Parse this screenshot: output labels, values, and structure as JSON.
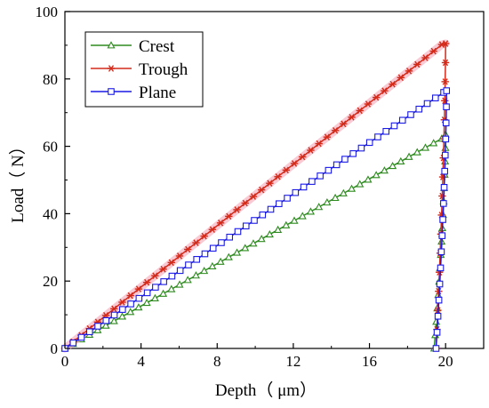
{
  "chart_data": {
    "type": "line",
    "xlabel": "Depth（ μm）",
    "ylabel": "Load（ N）",
    "xlim": [
      0,
      22
    ],
    "ylim": [
      0,
      100
    ],
    "xticks": [
      0,
      4,
      8,
      12,
      16,
      20
    ],
    "yticks": [
      0,
      20,
      40,
      60,
      80,
      100
    ],
    "grid": false,
    "legend_position": "top-left",
    "series": [
      {
        "name": "Crest",
        "color": "#2e8b1f",
        "marker": "triangle",
        "loading": {
          "x": [
            0,
            19.8
          ],
          "y": [
            0,
            62.3
          ]
        },
        "peak": {
          "x": 20.0,
          "y": 63.5
        },
        "unloading": {
          "x": [
            20.0,
            19.4
          ],
          "y": [
            63.5,
            0
          ]
        }
      },
      {
        "name": "Trough",
        "color": "#d42a1a",
        "marker": "star",
        "loading": {
          "x": [
            0,
            19.8
          ],
          "y": [
            0,
            90.2
          ]
        },
        "peak": {
          "x": 20.0,
          "y": 90.5
        },
        "unloading": {
          "x": [
            20.0,
            19.5
          ],
          "y": [
            90.5,
            0
          ]
        }
      },
      {
        "name": "Plane",
        "color": "#1a1ae6",
        "marker": "square",
        "loading": {
          "x": [
            0,
            19.9
          ],
          "y": [
            0,
            76.0
          ]
        },
        "peak": {
          "x": 20.05,
          "y": 76.5
        },
        "unloading": {
          "x": [
            20.05,
            19.5
          ],
          "y": [
            76.5,
            0
          ]
        }
      }
    ]
  }
}
